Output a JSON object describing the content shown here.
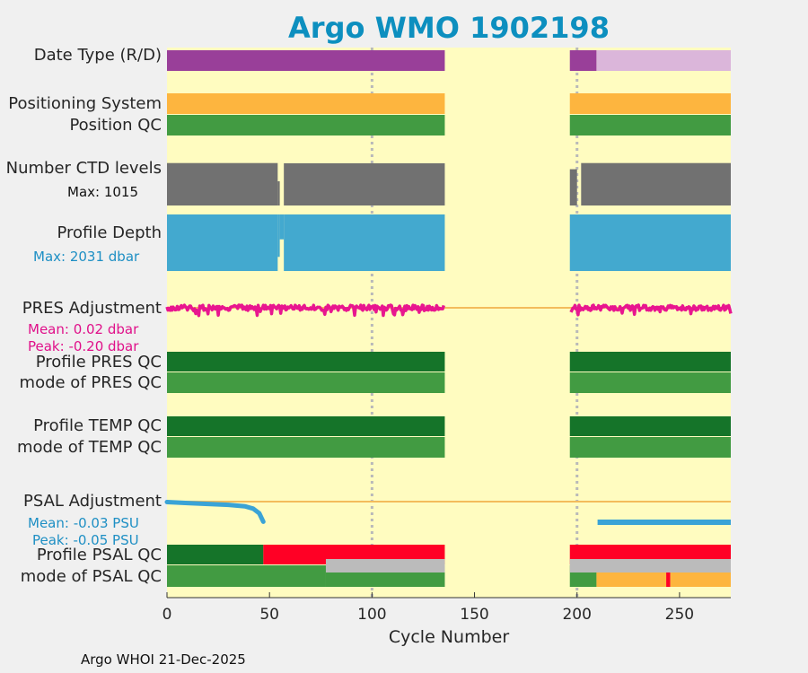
{
  "chart_data": {
    "type": "timeline",
    "title": "Argo WMO 1902198",
    "xlabel": "Cycle Number",
    "xlim": [
      0,
      275
    ],
    "xticks": [
      "0",
      "50",
      "100",
      "150",
      "200",
      "250"
    ],
    "gridlines_x": [
      100,
      200
    ],
    "data_gap": [
      136,
      197
    ],
    "colors": {
      "background": "#fffcc0",
      "realtime_purple": "#993f99",
      "delayed_pink": "#dbb6da",
      "positioning_orange": "#fdb53f",
      "qc_good_light": "#429b42",
      "qc_good_dark": "#157429",
      "qc_bad_red": "#ff0025",
      "qc_missing_grey": "#bbbbbb",
      "ctd_grey": "#717171",
      "depth_blue": "#43a9cf",
      "pres_magenta": "#e8168f",
      "psal_blue": "#3aa3d6",
      "zero_line": "#f3bc5c"
    },
    "rows": {
      "date_type": {
        "label": "Date Type (R/D)"
      },
      "positioning_system": {
        "label": "Positioning System"
      },
      "position_qc": {
        "label": "Position QC"
      },
      "ctd_levels": {
        "label": "Number CTD levels",
        "max_text": "Max: 1015",
        "max": 1015
      },
      "profile_depth": {
        "label": "Profile Depth",
        "max_text": "Max: 2031 dbar",
        "max": 2031
      },
      "pres_adjustment": {
        "label": "PRES Adjustment",
        "mean_text": "Mean: 0.02 dbar",
        "peak_text": "Peak: -0.20 dbar",
        "mean": 0.02,
        "peak": -0.2
      },
      "profile_pres_qc": {
        "label": "Profile PRES QC"
      },
      "mode_pres_qc": {
        "label": "mode of PRES QC"
      },
      "profile_temp_qc": {
        "label": "Profile TEMP QC"
      },
      "mode_temp_qc": {
        "label": "mode of TEMP QC"
      },
      "psal_adjustment": {
        "label": "PSAL Adjustment",
        "mean_text": "Mean: -0.03 PSU",
        "peak_text": "Peak: -0.05 PSU",
        "mean": -0.03,
        "peak": -0.05
      },
      "profile_psal_qc": {
        "label": "Profile PSAL QC"
      },
      "mode_psal_qc": {
        "label": "mode of PSAL QC"
      }
    },
    "segments": {
      "date_type": [
        {
          "x0": 0,
          "x1": 135.5,
          "color": "realtime_purple"
        },
        {
          "x0": 196.5,
          "x1": 209.5,
          "color": "realtime_purple"
        },
        {
          "x0": 209.5,
          "x1": 275,
          "color": "delayed_pink"
        }
      ],
      "positioning_system": [
        {
          "x0": 0,
          "x1": 135.5,
          "color": "positioning_orange"
        },
        {
          "x0": 196.5,
          "x1": 275,
          "color": "positioning_orange"
        }
      ],
      "position_qc": [
        {
          "x0": 0,
          "x1": 135.5,
          "color": "qc_good_light"
        },
        {
          "x0": 196.5,
          "x1": 275,
          "color": "qc_good_light"
        }
      ],
      "profile_pres_qc": [
        {
          "x0": 0,
          "x1": 135.5,
          "color": "qc_good_dark"
        },
        {
          "x0": 196.5,
          "x1": 275,
          "color": "qc_good_dark"
        }
      ],
      "mode_pres_qc": [
        {
          "x0": 0,
          "x1": 135.5,
          "color": "qc_good_light"
        },
        {
          "x0": 196.5,
          "x1": 275,
          "color": "qc_good_light"
        }
      ],
      "profile_temp_qc": [
        {
          "x0": 0,
          "x1": 135.5,
          "color": "qc_good_dark"
        },
        {
          "x0": 196.5,
          "x1": 275,
          "color": "qc_good_dark"
        }
      ],
      "mode_temp_qc": [
        {
          "x0": 0,
          "x1": 135.5,
          "color": "qc_good_light"
        },
        {
          "x0": 196.5,
          "x1": 275,
          "color": "qc_good_light"
        }
      ],
      "profile_psal_qc": [
        {
          "x0": 0,
          "x1": 47,
          "color": "qc_good_dark"
        },
        {
          "x0": 47,
          "x1": 135.5,
          "color": "qc_bad_red"
        },
        {
          "x0": 196.5,
          "x1": 275,
          "color": "qc_bad_red"
        }
      ],
      "mode_psal_qc": [
        {
          "x0": 0,
          "x1": 77.5,
          "color": "qc_good_light"
        },
        {
          "x0": 77.5,
          "x1": 135.5,
          "color": "qc_missing_grey"
        },
        {
          "x0": 196.5,
          "x1": 209.5,
          "color": "qc_good_light"
        },
        {
          "x0": 209.5,
          "x1": 243.5,
          "color": "positioning_orange"
        },
        {
          "x0": 243.5,
          "x1": 245.5,
          "color": "qc_bad_red"
        },
        {
          "x0": 245.5,
          "x1": 275,
          "color": "positioning_orange"
        }
      ]
    },
    "ctd_levels_values": [
      {
        "x0": 0,
        "x1": 54,
        "value": 1000
      },
      {
        "x0": 54,
        "x1": 55,
        "value": 570
      },
      {
        "x0": 55,
        "x1": 57,
        "value": 0
      },
      {
        "x0": 57,
        "x1": 135.5,
        "value": 995
      },
      {
        "x0": 196.5,
        "x1": 200,
        "value": 855
      },
      {
        "x0": 200,
        "x1": 202,
        "value": 0
      },
      {
        "x0": 202,
        "x1": 275,
        "value": 1000
      }
    ],
    "profile_depth_values": [
      {
        "x0": 0,
        "x1": 54,
        "value": 2000
      },
      {
        "x0": 54,
        "x1": 55,
        "value": 1500
      },
      {
        "x0": 55,
        "x1": 57,
        "value": 880
      },
      {
        "x0": 57,
        "x1": 135.5,
        "value": 2000
      },
      {
        "x0": 196.5,
        "x1": 275,
        "value": 2000
      }
    ],
    "pres_adjustment_series": [
      {
        "x0": 0,
        "x1": 135,
        "mean": 0.02,
        "peak": -0.2
      },
      {
        "x0": 197,
        "x1": 275,
        "mean": 0.02,
        "peak": -0.2
      }
    ],
    "psal_adjustment_series": [
      {
        "x": 0,
        "y": -0.001
      },
      {
        "x": 10,
        "y": -0.003
      },
      {
        "x": 20,
        "y": -0.005
      },
      {
        "x": 30,
        "y": -0.007
      },
      {
        "x": 38,
        "y": -0.01
      },
      {
        "x": 42,
        "y": -0.015
      },
      {
        "x": 45,
        "y": -0.025
      },
      {
        "x": 47,
        "y": -0.043
      },
      {
        "x": 210,
        "y": -0.046
      },
      {
        "x": 275,
        "y": -0.046
      }
    ],
    "psal_ylim": [
      -0.05,
      0.0
    ]
  },
  "footer": "Argo WHOI 21-Dec-2025"
}
